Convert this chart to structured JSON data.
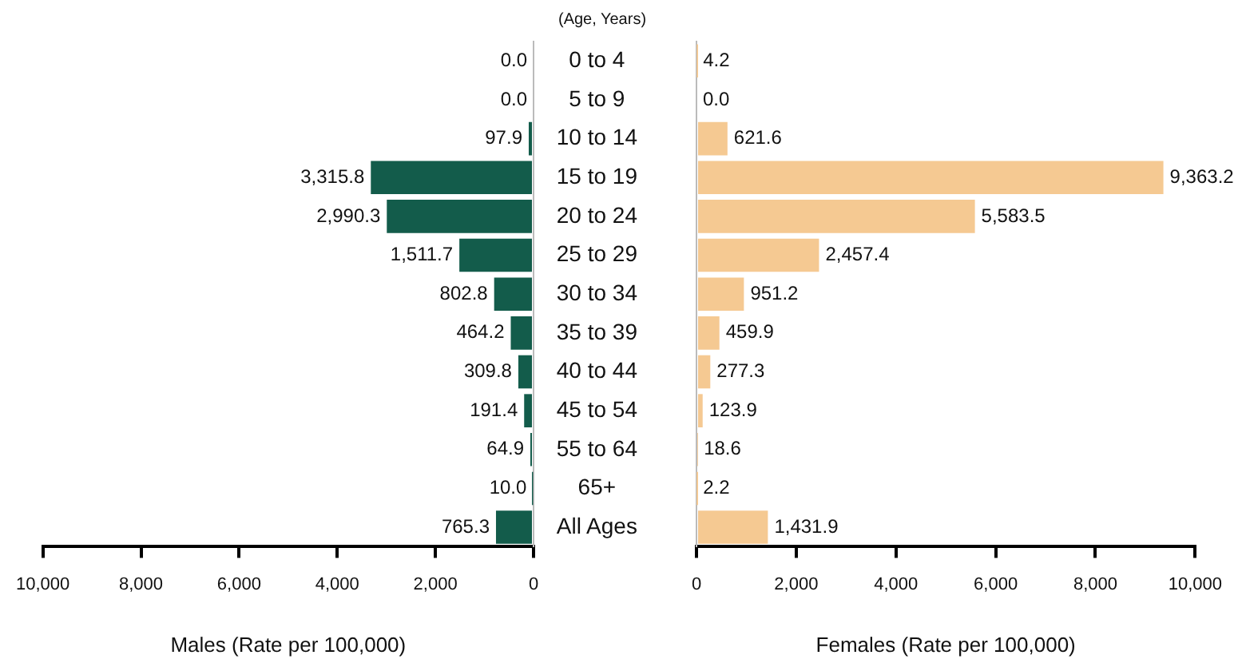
{
  "chart_data": [
    {
      "type": "bar",
      "orientation": "horizontal",
      "xlabel": "Males (Rate per 100,000)",
      "ylabel": "(Age, Years)",
      "categories": [
        "0 to 4",
        "5 to 9",
        "10 to 14",
        "15 to 19",
        "20 to 24",
        "25 to 29",
        "30 to 34",
        "35 to 39",
        "40 to 44",
        "45 to 54",
        "55 to 64",
        "65+",
        "All Ages"
      ],
      "values": [
        0.0,
        0.0,
        97.9,
        3315.8,
        2990.3,
        1511.7,
        802.8,
        464.2,
        309.8,
        191.4,
        64.9,
        10.0,
        765.3
      ],
      "value_labels": [
        "0.0",
        "0.0",
        "97.9",
        "3,315.8",
        "2,990.3",
        "1,511.7",
        "802.8",
        "464.2",
        "309.8",
        "191.4",
        "64.9",
        "10.0",
        "765.3"
      ],
      "color": "#135c4b",
      "xlim": [
        10000,
        0
      ],
      "xticks": [
        {
          "value": 10000,
          "label": "10,000"
        },
        {
          "value": 8000,
          "label": "8,000"
        },
        {
          "value": 6000,
          "label": "6,000"
        },
        {
          "value": 4000,
          "label": "4,000"
        },
        {
          "value": 2000,
          "label": "2,000"
        },
        0
      ],
      "grid": false,
      "legend": false
    },
    {
      "type": "bar",
      "orientation": "horizontal",
      "xlabel": "Females (Rate per 100,000)",
      "categories": [
        null,
        null,
        null,
        null,
        null,
        null,
        null,
        null,
        null,
        null,
        null,
        null,
        null
      ],
      "values": [
        4.2,
        0.0,
        621.6,
        9363.2,
        5583.5,
        2457.4,
        951.2,
        459.9,
        277.3,
        123.9,
        18.6,
        2.2,
        1431.9
      ],
      "value_labels": [
        "4.2",
        "0.0",
        "621.6",
        "9,363.2",
        "5,583.5",
        "2,457.4",
        "951.2",
        "459.9",
        "277.3",
        "123.9",
        "18.6",
        "2.2",
        "1,431.9"
      ],
      "color": "#f5c992",
      "xlim": [
        0,
        10000
      ],
      "xticks": [
        0,
        {
          "value": 2000,
          "label": "2,000"
        },
        {
          "value": 4000,
          "label": "4,000"
        },
        {
          "value": 6000,
          "label": "6,000"
        },
        {
          "value": 8000,
          "label": "8,000"
        },
        {
          "value": 10000,
          "label": "10,000"
        }
      ],
      "grid": false,
      "legend": false,
      "tick_labels": "x"
    }
  ]
}
